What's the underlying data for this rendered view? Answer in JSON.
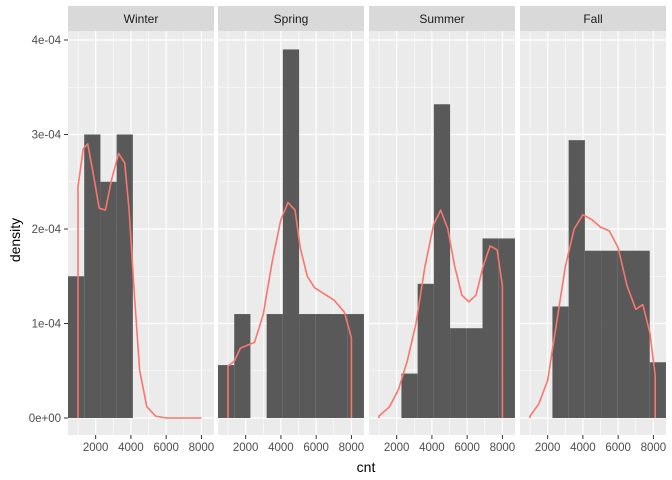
{
  "chart_data": {
    "type": "histogram-density-facets",
    "xlabel": "cnt",
    "ylabel": "density",
    "xlim": [
      431,
      8714
    ],
    "ylim": [
      0,
      0.0004
    ],
    "x_ticks": [
      2000,
      4000,
      6000,
      8000
    ],
    "x_tick_labels": [
      "2000",
      "4000",
      "6000",
      "8000"
    ],
    "y_ticks": [
      0,
      0.0001,
      0.0002,
      0.0003,
      0.0004
    ],
    "y_tick_labels": [
      "0e+00",
      "1e-04",
      "2e-04",
      "3e-04",
      "4e-04"
    ],
    "grid": true,
    "colors": {
      "panel_bg": "#EBEBEB",
      "strip_bg": "#D9D9D9",
      "bar_fill": "#595959",
      "density_line": "#F8766D",
      "grid": "#FFFFFF"
    },
    "bin_width": 920,
    "panels": [
      {
        "name": "Winter",
        "bins": [
          {
            "x0": 431,
            "x1": 1351,
            "density": 0.00015
          },
          {
            "x0": 1351,
            "x1": 2271,
            "density": 0.0003
          },
          {
            "x0": 2271,
            "x1": 3191,
            "density": 0.00025
          },
          {
            "x0": 3191,
            "x1": 4111,
            "density": 0.0003
          }
        ],
        "density_curve": [
          [
            1000,
            0
          ],
          [
            1000,
            0.000245
          ],
          [
            1300,
            0.000285
          ],
          [
            1550,
            0.00029
          ],
          [
            1850,
            0.00026
          ],
          [
            2200,
            0.000222
          ],
          [
            2550,
            0.00022
          ],
          [
            2900,
            0.000252
          ],
          [
            3300,
            0.00028
          ],
          [
            3650,
            0.00027
          ],
          [
            3900,
            0.00022
          ],
          [
            4200,
            0.00013
          ],
          [
            4500,
            5e-05
          ],
          [
            4900,
            1.2e-05
          ],
          [
            5400,
            2e-06
          ],
          [
            6000,
            0
          ],
          [
            8000,
            0
          ]
        ]
      },
      {
        "name": "Spring",
        "bins": [
          {
            "x0": 431,
            "x1": 1351,
            "density": 5.6e-05
          },
          {
            "x0": 1351,
            "x1": 2271,
            "density": 0.00011
          },
          {
            "x0": 3191,
            "x1": 4111,
            "density": 0.00011
          },
          {
            "x0": 4111,
            "x1": 5031,
            "density": 0.00039
          },
          {
            "x0": 5031,
            "x1": 5951,
            "density": 0.00011
          },
          {
            "x0": 5951,
            "x1": 6871,
            "density": 0.00011
          },
          {
            "x0": 6871,
            "x1": 7791,
            "density": 0.00011
          },
          {
            "x0": 7791,
            "x1": 8711,
            "density": 0.00011
          }
        ],
        "density_curve": [
          [
            1000,
            0
          ],
          [
            1000,
            5.5e-05
          ],
          [
            1350,
            6e-05
          ],
          [
            1700,
            7.4e-05
          ],
          [
            2100,
            7.7e-05
          ],
          [
            2500,
            8e-05
          ],
          [
            3000,
            0.00011
          ],
          [
            3500,
            0.000165
          ],
          [
            4000,
            0.00021
          ],
          [
            4400,
            0.000228
          ],
          [
            4800,
            0.00022
          ],
          [
            5100,
            0.00018
          ],
          [
            5500,
            0.00015
          ],
          [
            5900,
            0.000138
          ],
          [
            6400,
            0.000132
          ],
          [
            7000,
            0.000125
          ],
          [
            7600,
            0.000112
          ],
          [
            8000,
            8.5e-05
          ],
          [
            8000,
            0
          ]
        ]
      },
      {
        "name": "Summer",
        "bins": [
          {
            "x0": 2271,
            "x1": 3191,
            "density": 4.7e-05
          },
          {
            "x0": 3191,
            "x1": 4111,
            "density": 0.000142
          },
          {
            "x0": 4111,
            "x1": 5031,
            "density": 0.000332
          },
          {
            "x0": 5031,
            "x1": 5951,
            "density": 9.5e-05
          },
          {
            "x0": 5951,
            "x1": 6871,
            "density": 9.5e-05
          },
          {
            "x0": 6871,
            "x1": 7791,
            "density": 0.00019
          },
          {
            "x0": 7791,
            "x1": 8711,
            "density": 0.00019
          }
        ],
        "density_curve": [
          [
            1000,
            0
          ],
          [
            1000,
            2e-06
          ],
          [
            1600,
            1.2e-05
          ],
          [
            2100,
            3e-05
          ],
          [
            2600,
            6e-05
          ],
          [
            3100,
            0.0001
          ],
          [
            3600,
            0.00016
          ],
          [
            4100,
            0.000205
          ],
          [
            4500,
            0.00022
          ],
          [
            4900,
            0.0002
          ],
          [
            5300,
            0.00016
          ],
          [
            5700,
            0.00013
          ],
          [
            6100,
            0.000123
          ],
          [
            6500,
            0.00013
          ],
          [
            6900,
            0.00016
          ],
          [
            7300,
            0.000182
          ],
          [
            7700,
            0.000178
          ],
          [
            8000,
            0.00014
          ],
          [
            8000,
            0
          ]
        ]
      },
      {
        "name": "Fall",
        "bins": [
          {
            "x0": 2271,
            "x1": 3191,
            "density": 0.000118
          },
          {
            "x0": 3191,
            "x1": 4111,
            "density": 0.000294
          },
          {
            "x0": 4111,
            "x1": 5031,
            "density": 0.000177
          },
          {
            "x0": 5031,
            "x1": 5951,
            "density": 0.000177
          },
          {
            "x0": 5951,
            "x1": 6871,
            "density": 0.000177
          },
          {
            "x0": 6871,
            "x1": 7791,
            "density": 0.000177
          },
          {
            "x0": 7791,
            "x1": 8711,
            "density": 5.9e-05
          }
        ],
        "density_curve": [
          [
            1000,
            0
          ],
          [
            1000,
            2e-06
          ],
          [
            1500,
            1.5e-05
          ],
          [
            2000,
            4e-05
          ],
          [
            2500,
            0.0001
          ],
          [
            3000,
            0.00016
          ],
          [
            3500,
            0.0002
          ],
          [
            4000,
            0.000215
          ],
          [
            4500,
            0.00021
          ],
          [
            5000,
            0.000202
          ],
          [
            5500,
            0.000198
          ],
          [
            6000,
            0.00018
          ],
          [
            6500,
            0.00014
          ],
          [
            7000,
            0.000115
          ],
          [
            7400,
            0.00012
          ],
          [
            7800,
            9e-05
          ],
          [
            8100,
            4.5e-05
          ],
          [
            8100,
            0
          ]
        ]
      }
    ]
  }
}
